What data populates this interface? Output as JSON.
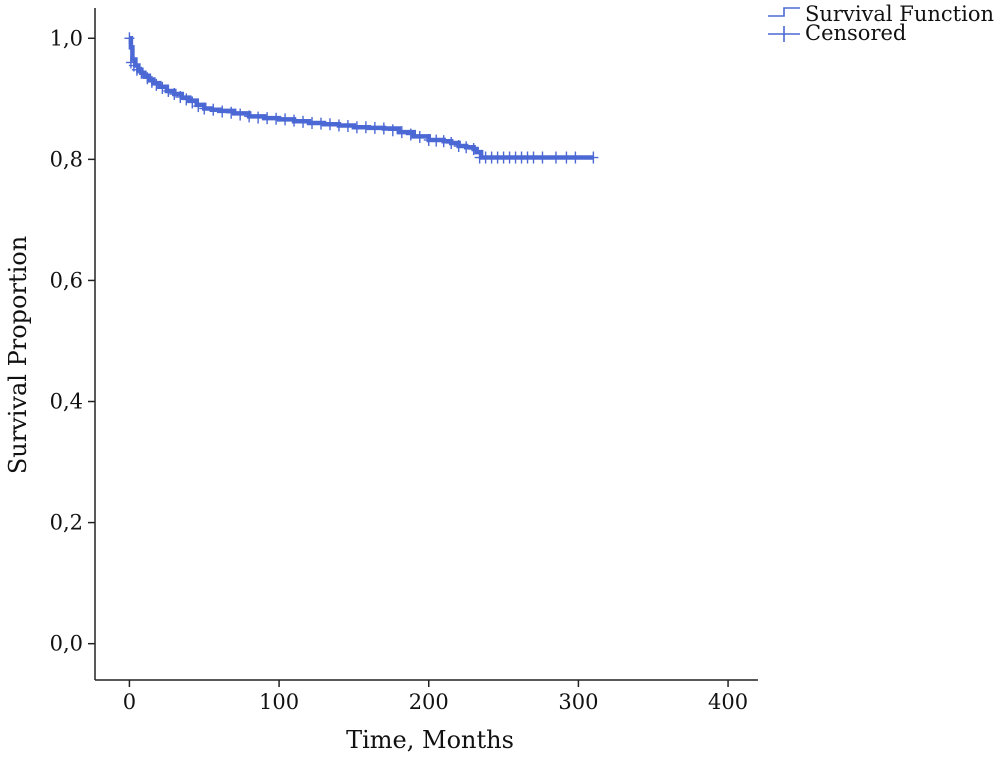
{
  "chart_data": {
    "type": "line",
    "xlabel": "Time, Months",
    "ylabel": "Survival Proportion",
    "xlim": [
      -23,
      420
    ],
    "ylim": [
      -0.06,
      1.05
    ],
    "x_ticks": [
      0,
      100,
      200,
      300,
      400
    ],
    "x_tick_labels": [
      "0",
      "100",
      "200",
      "300",
      "400"
    ],
    "y_ticks": [
      0.0,
      0.2,
      0.4,
      0.6,
      0.8,
      1.0
    ],
    "y_tick_labels": [
      "0,0",
      "0,2",
      "0,4",
      "0,6",
      "0,8",
      "1,0"
    ],
    "grid": false,
    "legend_position": "top-right",
    "legend": [
      "Survival Function",
      "Censored"
    ],
    "colors": {
      "series": "#4b68d4"
    },
    "series": [
      {
        "name": "Survival Function",
        "x": [
          0,
          1,
          2,
          4,
          6,
          8,
          10,
          13,
          16,
          20,
          25,
          30,
          35,
          40,
          45,
          50,
          55,
          60,
          70,
          80,
          90,
          100,
          110,
          120,
          130,
          140,
          150,
          160,
          170,
          180,
          190,
          200,
          210,
          215,
          220,
          225,
          230,
          232,
          235,
          240,
          250,
          260,
          270,
          280,
          290,
          300,
          310
        ],
        "y": [
          1.0,
          0.985,
          0.965,
          0.955,
          0.948,
          0.943,
          0.938,
          0.932,
          0.926,
          0.92,
          0.913,
          0.908,
          0.902,
          0.897,
          0.89,
          0.884,
          0.882,
          0.88,
          0.876,
          0.871,
          0.868,
          0.866,
          0.863,
          0.86,
          0.858,
          0.856,
          0.853,
          0.852,
          0.851,
          0.845,
          0.838,
          0.832,
          0.83,
          0.827,
          0.822,
          0.82,
          0.817,
          0.812,
          0.803,
          0.803,
          0.803,
          0.803,
          0.803,
          0.803,
          0.803,
          0.803,
          0.803
        ]
      },
      {
        "name": "Censored",
        "x": [
          0,
          1,
          3,
          5,
          8,
          12,
          15,
          18,
          22,
          26,
          30,
          34,
          38,
          42,
          46,
          50,
          56,
          62,
          68,
          74,
          80,
          86,
          92,
          98,
          104,
          110,
          116,
          122,
          128,
          134,
          140,
          146,
          152,
          158,
          164,
          170,
          176,
          182,
          188,
          194,
          200,
          205,
          210,
          215,
          220,
          225,
          230,
          234,
          238,
          242,
          246,
          250,
          254,
          258,
          262,
          266,
          270,
          276,
          285,
          292,
          298,
          310
        ],
        "y": [
          1.0,
          0.96,
          0.955,
          0.948,
          0.943,
          0.934,
          0.928,
          0.923,
          0.918,
          0.913,
          0.908,
          0.903,
          0.899,
          0.894,
          0.888,
          0.884,
          0.882,
          0.879,
          0.877,
          0.874,
          0.871,
          0.869,
          0.868,
          0.867,
          0.866,
          0.864,
          0.862,
          0.86,
          0.859,
          0.858,
          0.856,
          0.855,
          0.853,
          0.853,
          0.852,
          0.851,
          0.848,
          0.845,
          0.841,
          0.837,
          0.832,
          0.831,
          0.83,
          0.827,
          0.822,
          0.82,
          0.817,
          0.803,
          0.803,
          0.803,
          0.803,
          0.803,
          0.803,
          0.803,
          0.803,
          0.803,
          0.803,
          0.803,
          0.803,
          0.803,
          0.803,
          0.803
        ]
      }
    ]
  }
}
